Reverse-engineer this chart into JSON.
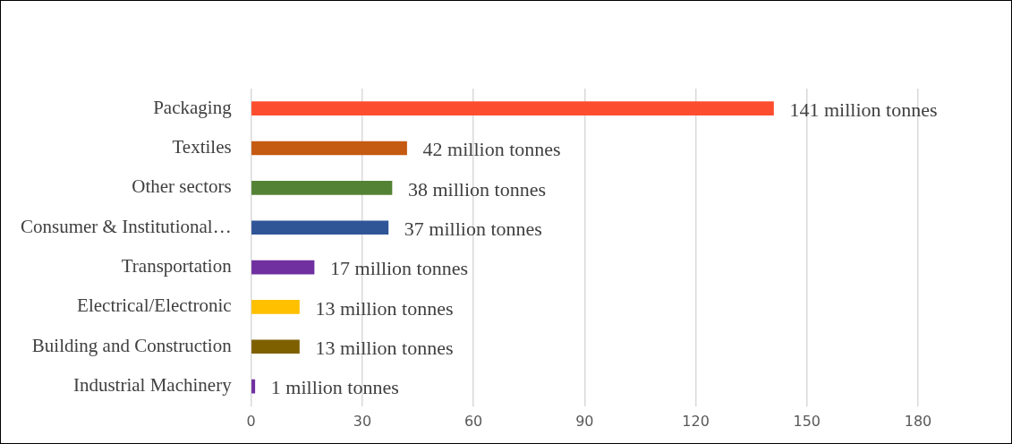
{
  "chart_data": {
    "type": "bar",
    "orientation": "horizontal",
    "categories": [
      "Packaging",
      "Textiles",
      "Other sectors",
      "Consumer & Institutional…",
      "Transportation",
      "Electrical/Electronic",
      "Building and Construction",
      "Industrial Machinery"
    ],
    "values": [
      141,
      42,
      38,
      37,
      17,
      13,
      13,
      1
    ],
    "colors": [
      "#fc4e2f",
      "#c55a11",
      "#548235",
      "#2f5597",
      "#7030a0",
      "#ffc000",
      "#7f6000",
      "#7030a0"
    ],
    "value_labels": [
      "141 million tonnes",
      "42 million tonnes",
      "38 million tonnes",
      "37 million tonnes",
      "17 million tonnes",
      "13 million tonnes",
      "13 million tonnes",
      "1 million tonnes"
    ],
    "xlim": [
      0,
      180
    ],
    "xticks": [
      0,
      30,
      60,
      90,
      120,
      150,
      180
    ],
    "grid": "x",
    "legend": false
  }
}
